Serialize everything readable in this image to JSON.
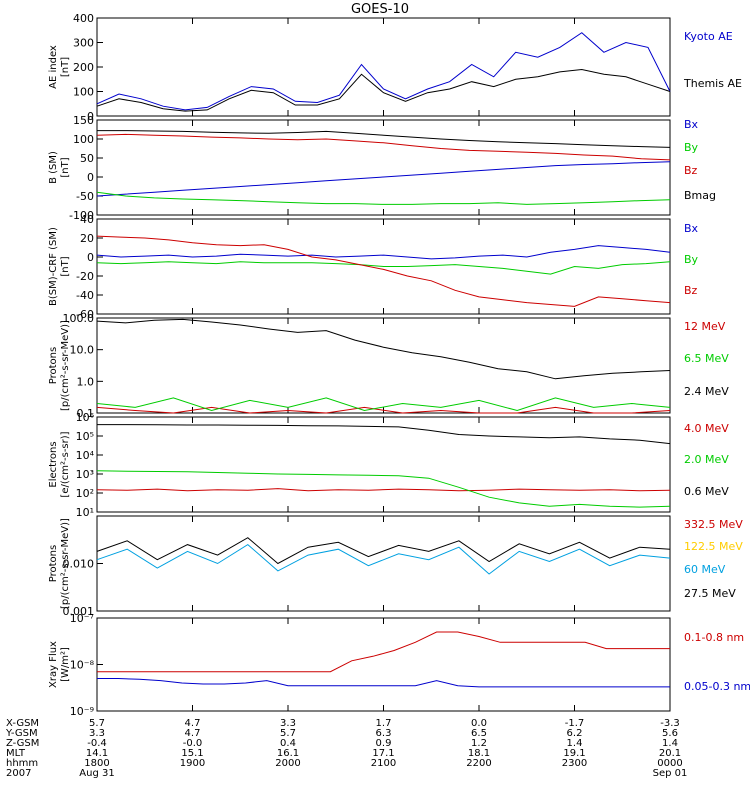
{
  "title": "GOES-10",
  "chart_data": [
    {
      "type": "line",
      "id": "ae",
      "ylabel": [
        "AE index",
        "[nT]"
      ],
      "ylim": [
        0,
        400
      ],
      "yticks": [
        0,
        100,
        200,
        300,
        400
      ],
      "yscale": "linear",
      "series": [
        {
          "name": "Kyoto AE",
          "color": "#0000cc",
          "values": [
            50,
            90,
            70,
            40,
            25,
            35,
            80,
            120,
            110,
            60,
            55,
            85,
            210,
            110,
            70,
            110,
            140,
            210,
            160,
            260,
            240,
            280,
            340,
            260,
            300,
            280,
            100
          ]
        },
        {
          "name": "Themis AE",
          "color": "#000000",
          "values": [
            40,
            70,
            55,
            30,
            20,
            25,
            70,
            105,
            95,
            45,
            45,
            70,
            170,
            95,
            60,
            95,
            110,
            140,
            120,
            150,
            160,
            180,
            190,
            170,
            160,
            130,
            100
          ]
        }
      ]
    },
    {
      "type": "line",
      "id": "bsm",
      "ylabel": [
        "B (SM)",
        "[nT]"
      ],
      "ylim": [
        -100,
        150
      ],
      "yticks": [
        -100,
        -50,
        0,
        50,
        100,
        150
      ],
      "yscale": "linear",
      "series": [
        {
          "name": "Bx",
          "color": "#0000cc",
          "values": [
            -50,
            -45,
            -40,
            -35,
            -30,
            -25,
            -20,
            -15,
            -10,
            -5,
            0,
            5,
            10,
            15,
            20,
            25,
            30,
            33,
            35,
            38,
            40
          ]
        },
        {
          "name": "By",
          "color": "#00cc00",
          "values": [
            -40,
            -50,
            -55,
            -58,
            -60,
            -62,
            -65,
            -68,
            -70,
            -70,
            -72,
            -72,
            -70,
            -70,
            -68,
            -72,
            -70,
            -68,
            -65,
            -62,
            -60
          ]
        },
        {
          "name": "Bz",
          "color": "#cc0000",
          "values": [
            110,
            112,
            110,
            108,
            105,
            103,
            100,
            98,
            100,
            95,
            90,
            82,
            75,
            70,
            68,
            65,
            62,
            58,
            55,
            48,
            45
          ]
        },
        {
          "name": "Bmag",
          "color": "#000000",
          "values": [
            122,
            122,
            121,
            120,
            118,
            116,
            115,
            117,
            120,
            115,
            110,
            105,
            100,
            96,
            93,
            90,
            88,
            85,
            82,
            80,
            78
          ]
        }
      ]
    },
    {
      "type": "line",
      "id": "bdiff",
      "ylabel": [
        "B(SM)-CRF (SM)",
        "[nT]"
      ],
      "ylim": [
        -60,
        40
      ],
      "yticks": [
        -60,
        -40,
        -20,
        0,
        20,
        40
      ],
      "yscale": "linear",
      "series": [
        {
          "name": "Bx",
          "color": "#0000cc",
          "values": [
            2,
            0,
            1,
            2,
            0,
            1,
            3,
            2,
            1,
            2,
            0,
            1,
            2,
            0,
            -2,
            -1,
            1,
            2,
            0,
            5,
            8,
            12,
            10,
            8,
            5
          ]
        },
        {
          "name": "By",
          "color": "#00cc00",
          "values": [
            -6,
            -7,
            -6,
            -5,
            -6,
            -7,
            -5,
            -6,
            -6,
            -6,
            -7,
            -8,
            -10,
            -10,
            -9,
            -8,
            -10,
            -12,
            -15,
            -18,
            -10,
            -12,
            -8,
            -7,
            -5
          ]
        },
        {
          "name": "Bz",
          "color": "#cc0000",
          "values": [
            22,
            21,
            20,
            18,
            15,
            13,
            12,
            13,
            8,
            0,
            -3,
            -8,
            -13,
            -20,
            -25,
            -35,
            -42,
            -45,
            -48,
            -50,
            -52,
            -42,
            -44,
            -46,
            -48
          ]
        }
      ]
    },
    {
      "type": "line",
      "id": "protons_low",
      "ylabel": [
        "Protons",
        "[p/(cm²-s-sr-MeV)]"
      ],
      "ylim": [
        0.1,
        100
      ],
      "yticks": [
        0.1,
        1.0,
        10.0,
        100.0
      ],
      "yticklabels": [
        "0.1",
        "1.0",
        "10.0",
        "100.0"
      ],
      "yscale": "log",
      "series": [
        {
          "name": "12 MeV",
          "color": "#cc0000",
          "values": [
            0.15,
            0.12,
            0.1,
            0.15,
            0.1,
            0.12,
            0.1,
            0.15,
            0.1,
            0.12,
            0.1,
            0.1,
            0.15,
            0.1,
            0.1,
            0.12
          ]
        },
        {
          "name": "6.5 MeV",
          "color": "#00cc00",
          "values": [
            0.2,
            0.15,
            0.3,
            0.12,
            0.25,
            0.15,
            0.3,
            0.12,
            0.2,
            0.15,
            0.25,
            0.12,
            0.3,
            0.15,
            0.2,
            0.15
          ]
        },
        {
          "name": "2.4 MeV",
          "color": "#000000",
          "values": [
            80,
            70,
            85,
            90,
            75,
            60,
            45,
            35,
            40,
            20,
            12,
            8,
            6,
            4,
            2.5,
            2,
            1.2,
            1.5,
            1.8,
            2,
            2.2
          ]
        }
      ]
    },
    {
      "type": "line",
      "id": "electrons",
      "ylabel": [
        "Electrons",
        "[e/(cm²-s-sr)]"
      ],
      "ylim": [
        10,
        1000000
      ],
      "yticks": [
        10,
        100,
        1000,
        10000,
        100000,
        1000000
      ],
      "yticklabels": [
        "10¹",
        "10²",
        "10³",
        "10⁴",
        "10⁵",
        "10⁶"
      ],
      "yscale": "log",
      "series": [
        {
          "name": "4.0 MeV",
          "color": "#cc0000",
          "values": [
            150,
            140,
            160,
            130,
            150,
            140,
            170,
            130,
            150,
            140,
            160,
            150,
            130,
            140,
            160,
            150,
            140,
            150,
            130,
            140
          ]
        },
        {
          "name": "2.0 MeV",
          "color": "#00cc00",
          "values": [
            1500,
            1400,
            1350,
            1300,
            1200,
            1100,
            1000,
            950,
            900,
            850,
            800,
            600,
            200,
            60,
            30,
            20,
            25,
            20,
            18,
            20
          ]
        },
        {
          "name": "0.6 MeV",
          "color": "#000000",
          "values": [
            400000,
            400000,
            390000,
            380000,
            380000,
            370000,
            360000,
            350000,
            340000,
            320000,
            300000,
            200000,
            120000,
            100000,
            90000,
            80000,
            90000,
            70000,
            60000,
            40000
          ]
        }
      ]
    },
    {
      "type": "line",
      "id": "protons_high",
      "ylabel": [
        "Protons",
        "[p/(cm²-s-sr-MeV)]"
      ],
      "ylim": [
        0.001,
        0.1
      ],
      "yticks": [
        0.001,
        0.01
      ],
      "yticklabels": [
        "0.001",
        "0.010"
      ],
      "yscale": "log",
      "series": [
        {
          "name": "332.5 MeV",
          "color": "#cc0000",
          "values": []
        },
        {
          "name": "122.5 MeV",
          "color": "#ffcc00",
          "values": []
        },
        {
          "name": "60 MeV",
          "color": "#00a0e0",
          "values": [
            0.012,
            0.02,
            0.008,
            0.018,
            0.01,
            0.025,
            0.007,
            0.015,
            0.02,
            0.009,
            0.016,
            0.012,
            0.022,
            0.006,
            0.018,
            0.011,
            0.02,
            0.009,
            0.015,
            0.013
          ]
        },
        {
          "name": "27.5 MeV",
          "color": "#000000",
          "values": [
            0.018,
            0.03,
            0.012,
            0.025,
            0.015,
            0.035,
            0.01,
            0.022,
            0.028,
            0.014,
            0.024,
            0.018,
            0.03,
            0.011,
            0.026,
            0.016,
            0.028,
            0.013,
            0.022,
            0.02
          ]
        }
      ]
    },
    {
      "type": "line",
      "id": "xray",
      "ylabel": [
        "Xray Flux",
        "[W/m²]"
      ],
      "ylim": [
        1e-09,
        1e-07
      ],
      "yticks": [
        1e-09,
        1e-08,
        1e-07
      ],
      "yticklabels": [
        "10⁻⁹",
        "10⁻⁸",
        "10⁻⁷"
      ],
      "yscale": "log",
      "series": [
        {
          "name": "0.1-0.8 nm",
          "color": "#cc0000",
          "values": [
            7e-09,
            7e-09,
            7e-09,
            7e-09,
            7e-09,
            7e-09,
            7e-09,
            7e-09,
            7e-09,
            7e-09,
            7e-09,
            7e-09,
            1.2e-08,
            1.5e-08,
            2e-08,
            3e-08,
            5e-08,
            5e-08,
            4e-08,
            3e-08,
            3e-08,
            3e-08,
            3e-08,
            3e-08,
            2.2e-08,
            2.2e-08,
            2.2e-08,
            2.2e-08
          ]
        },
        {
          "name": "0.05-0.3 nm",
          "color": "#0000cc",
          "values": [
            5e-09,
            5e-09,
            4.8e-09,
            4.5e-09,
            4e-09,
            3.8e-09,
            3.8e-09,
            4e-09,
            4.5e-09,
            3.5e-09,
            3.5e-09,
            3.5e-09,
            3.5e-09,
            3.5e-09,
            3.5e-09,
            3.5e-09,
            4.5e-09,
            3.5e-09,
            3.3e-09,
            3.3e-09,
            3.3e-09,
            3.3e-09,
            3.3e-09,
            3.3e-09,
            3.3e-09,
            3.3e-09,
            3.3e-09,
            3.3e-09
          ]
        }
      ]
    }
  ],
  "ephemeris": {
    "labels": [
      "X-GSM",
      "Y-GSM",
      "Z-GSM",
      "MLT",
      "hhmm",
      "2007"
    ],
    "columns": [
      [
        "5.7",
        "3.3",
        "-0.4",
        "14.1",
        "1800",
        "Aug 31"
      ],
      [
        "4.7",
        "4.7",
        "-0.0",
        "15.1",
        "1900",
        ""
      ],
      [
        "3.3",
        "5.7",
        "0.4",
        "16.1",
        "2000",
        ""
      ],
      [
        "1.7",
        "6.3",
        "0.9",
        "17.1",
        "2100",
        ""
      ],
      [
        "0.0",
        "6.5",
        "1.2",
        "18.1",
        "2200",
        ""
      ],
      [
        "-1.7",
        "6.2",
        "1.4",
        "19.1",
        "2300",
        ""
      ],
      [
        "-3.3",
        "5.6",
        "1.4",
        "20.1",
        "0000",
        "Sep 01"
      ]
    ]
  }
}
